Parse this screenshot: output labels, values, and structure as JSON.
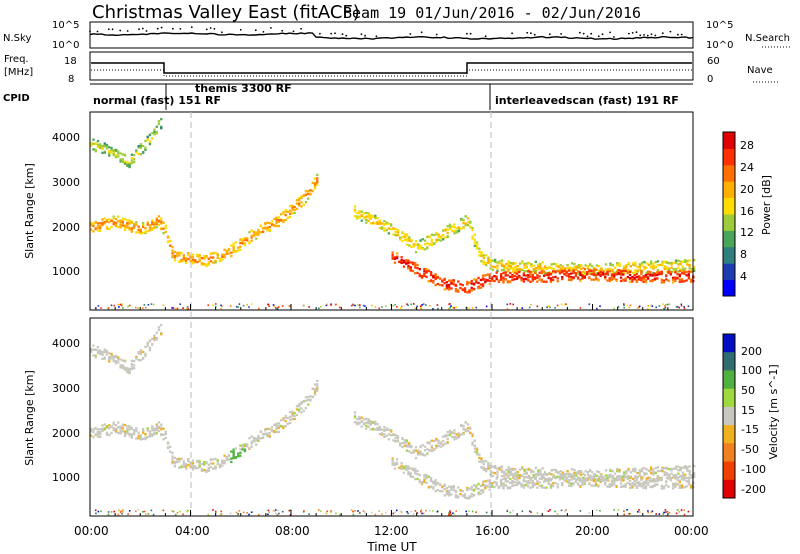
{
  "chart_data": {
    "type": "heatmap",
    "title": "Christmas Valley East (fitACF)",
    "subtitle": "Beam 19  01/Jun/2016 - 02/Jun/2016",
    "xlabel": "Time UT",
    "xticks": [
      "00:00",
      "04:00",
      "08:00",
      "12:00",
      "16:00",
      "20:00",
      "00:00"
    ],
    "xlim": [
      0,
      24
    ],
    "panels": {
      "sky": {
        "label": "N.Sky",
        "left_ticks": [
          "10^5",
          "10^0"
        ],
        "right_ticks": [
          "10^5",
          "10^0"
        ],
        "right_label": "N.Search"
      },
      "freq": {
        "label_line1": "Freq.",
        "label_line2": "[MHz]",
        "left_ticks": [
          "18",
          "8"
        ],
        "right_ticks": [
          "60",
          "0"
        ],
        "right_label": "Nave"
      },
      "cpid": {
        "label": "CPID",
        "segments": [
          {
            "label": "normal (fast)  151  RF",
            "start": 0,
            "end": 3.05
          },
          {
            "label": "themis 3300 RF",
            "start": 3.05,
            "end": 15.9
          },
          {
            "label": "interleavedscan (fast) 191 RF",
            "start": 15.9,
            "end": 24
          }
        ]
      },
      "power": {
        "ylabel": "Slant Range [km]",
        "yticks": [
          "1000",
          "2000",
          "3000",
          "4000"
        ],
        "ylim": [
          180,
          4600
        ],
        "colorbar_label": "Power [dB]",
        "colorbar_ticks": [
          "4",
          "8",
          "12",
          "16",
          "20",
          "24",
          "28"
        ],
        "colorbar_range": [
          0,
          32
        ]
      },
      "velocity": {
        "ylabel": "Slant Range [km]",
        "yticks": [
          "1000",
          "2000",
          "3000",
          "4000"
        ],
        "ylim": [
          180,
          4600
        ],
        "colorbar_label": "Velocity [m s^-1]",
        "colorbar_ticks": [
          "200",
          "100",
          "50",
          "15",
          "-15",
          "-50",
          "-100",
          "-200"
        ]
      }
    },
    "series": [
      {
        "range_km": [
          [
            0,
            2050
          ],
          [
            1,
            2180
          ],
          [
            2,
            2000
          ],
          [
            2.7,
            2200
          ],
          [
            3,
            1950
          ],
          [
            3.3,
            1400
          ],
          [
            4.5,
            1300
          ],
          [
            5.5,
            1500
          ],
          [
            6.5,
            1900
          ],
          [
            7.5,
            2200
          ],
          [
            8.5,
            2700
          ],
          [
            9,
            3100
          ]
        ]
      },
      {
        "range_km": [
          [
            0,
            3900
          ],
          [
            1,
            3700
          ],
          [
            1.5,
            3500
          ],
          [
            2.5,
            4100
          ],
          [
            2.8,
            4400
          ]
        ]
      },
      {
        "range_km": [
          [
            10.5,
            2400
          ],
          [
            12,
            2000
          ],
          [
            13,
            1600
          ],
          [
            14,
            1900
          ],
          [
            15,
            2200
          ],
          [
            15.5,
            1400
          ],
          [
            16,
            1200
          ],
          [
            18,
            1150
          ],
          [
            20,
            1100
          ],
          [
            22,
            1150
          ],
          [
            24,
            1200
          ]
        ]
      },
      {
        "range_km": [
          [
            12,
            1400
          ],
          [
            13,
            1100
          ],
          [
            14,
            800
          ],
          [
            15,
            700
          ],
          [
            16,
            950
          ],
          [
            18,
            950
          ],
          [
            20,
            1000
          ],
          [
            22,
            950
          ],
          [
            24,
            950
          ]
        ]
      }
    ]
  },
  "colors": {
    "power_scale": [
      "#0000ff",
      "#1c3cb0",
      "#2f7f7f",
      "#4aa55a",
      "#9ccc3a",
      "#ffdd00",
      "#ffb000",
      "#ff7000",
      "#ff3000",
      "#e00000"
    ],
    "velocity_scale": [
      "#0010c0",
      "#306d70",
      "#50b040",
      "#a0d840",
      "#c8c8c0",
      "#f0b020",
      "#f08020",
      "#f04000",
      "#e00000"
    ]
  }
}
